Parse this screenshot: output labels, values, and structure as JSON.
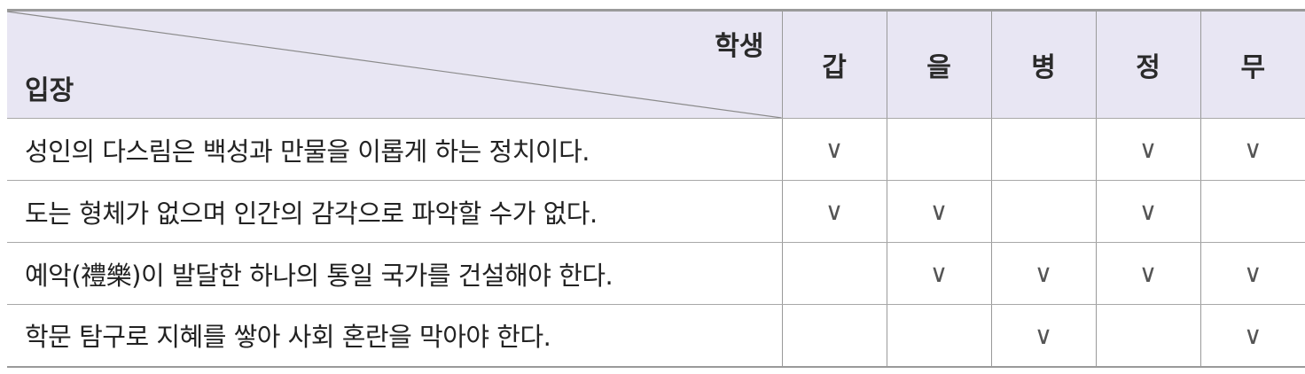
{
  "header": {
    "student_label": "학생",
    "stance_label": "입장",
    "students": [
      "갑",
      "을",
      "병",
      "정",
      "무"
    ]
  },
  "check_symbol": "∨",
  "rows": [
    {
      "stance": "성인의 다스림은 백성과 만물을 이롭게 하는 정치이다.",
      "checks": [
        "∨",
        "",
        "",
        "∨",
        "∨"
      ]
    },
    {
      "stance": "도는 형체가 없으며 인간의 감각으로 파악할 수가 없다.",
      "checks": [
        "∨",
        "∨",
        "",
        "∨",
        ""
      ]
    },
    {
      "stance": "예악(禮樂)이 발달한 하나의 통일 국가를 건설해야 한다.",
      "checks": [
        "",
        "∨",
        "∨",
        "∨",
        "∨"
      ]
    },
    {
      "stance": "학문 탐구로 지혜를 쌓아 사회 혼란을 막아야 한다.",
      "checks": [
        "",
        "",
        "∨",
        "",
        "∨"
      ]
    }
  ],
  "colors": {
    "header_bg": "#e8e6f3",
    "border": "#9a9a9a"
  }
}
